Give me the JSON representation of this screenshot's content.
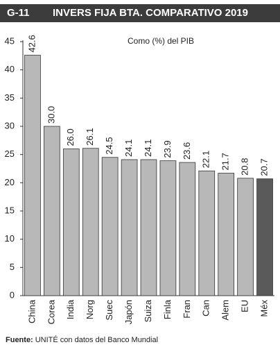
{
  "chart_data": {
    "type": "bar",
    "figure_label": "G-11",
    "title": "INVERS FIJA BTA. COMPARATIVO 2019",
    "subtitle": "Como (%) del PIB",
    "categories": [
      "China",
      "Corea",
      "India",
      "Norg",
      "Suec",
      "Japón",
      "Suiza",
      "Finla",
      "Fran",
      "Can",
      "Alem",
      "EU",
      "Méx"
    ],
    "values": [
      42.6,
      30.0,
      26.0,
      26.1,
      24.5,
      24.1,
      24.1,
      23.9,
      23.6,
      22.1,
      21.7,
      20.8,
      20.7
    ],
    "value_labels": [
      "42.6",
      "30.0",
      "26.0",
      "26.1",
      "24.5",
      "24.1",
      "24.1",
      "23.9",
      "23.6",
      "22.1",
      "21.7",
      "20.8",
      "20.7"
    ],
    "colors": [
      "#b8b8b8",
      "#b8b8b8",
      "#b8b8b8",
      "#b8b8b8",
      "#b8b8b8",
      "#b8b8b8",
      "#b8b8b8",
      "#b8b8b8",
      "#b8b8b8",
      "#b8b8b8",
      "#b8b8b8",
      "#b8b8b8",
      "#5a5a5a"
    ],
    "ylim": [
      0,
      45
    ],
    "yticks": [
      0,
      5,
      10,
      15,
      20,
      25,
      30,
      35,
      40,
      45
    ],
    "grid": false,
    "source_label": "Fuente:",
    "source": "UNITÉ con datos del Banco Mundial"
  }
}
